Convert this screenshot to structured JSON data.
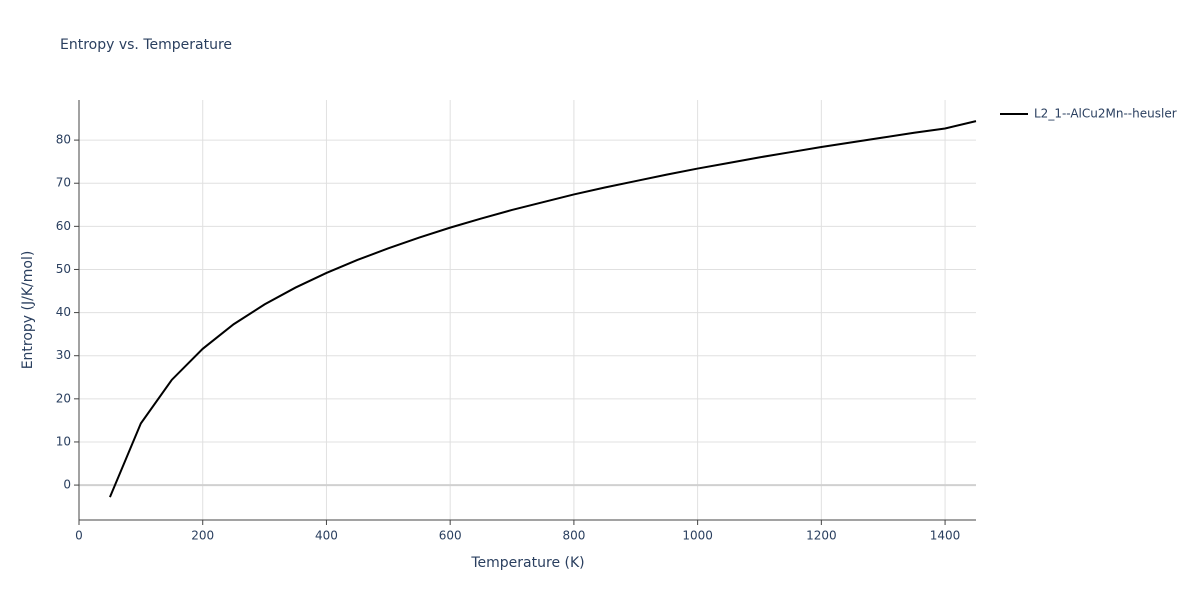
{
  "chart_data": {
    "type": "line",
    "title": "Entropy vs. Temperature",
    "x_label": "Temperature (K)",
    "y_label": "Entropy (J/K/mol)",
    "x": [
      50,
      100,
      150,
      200,
      250,
      300,
      350,
      400,
      450,
      500,
      550,
      600,
      650,
      700,
      750,
      800,
      850,
      900,
      950,
      1000,
      1050,
      1100,
      1150,
      1200,
      1250,
      1300,
      1350,
      1400,
      1450
    ],
    "series": [
      {
        "name": "L2_1--AlCu2Mn--heusler",
        "color": "#000000",
        "values": [
          -2.8,
          14.3,
          24.4,
          31.6,
          37.3,
          41.9,
          45.8,
          49.2,
          52.2,
          54.9,
          57.4,
          59.7,
          61.8,
          63.8,
          65.6,
          67.4,
          69.0,
          70.5,
          72.0,
          73.4,
          74.7,
          76.0,
          77.2,
          78.4,
          79.5,
          80.6,
          81.7,
          82.7,
          84.4
        ]
      }
    ],
    "xlim": [
      0,
      1450
    ],
    "ylim": [
      -8.1,
      89.3
    ],
    "xticks": [
      0,
      200,
      400,
      600,
      800,
      1000,
      1200,
      1400
    ],
    "yticks": [
      0,
      10,
      20,
      30,
      40,
      50,
      60,
      70,
      80
    ],
    "grid": true,
    "legend": "right"
  }
}
